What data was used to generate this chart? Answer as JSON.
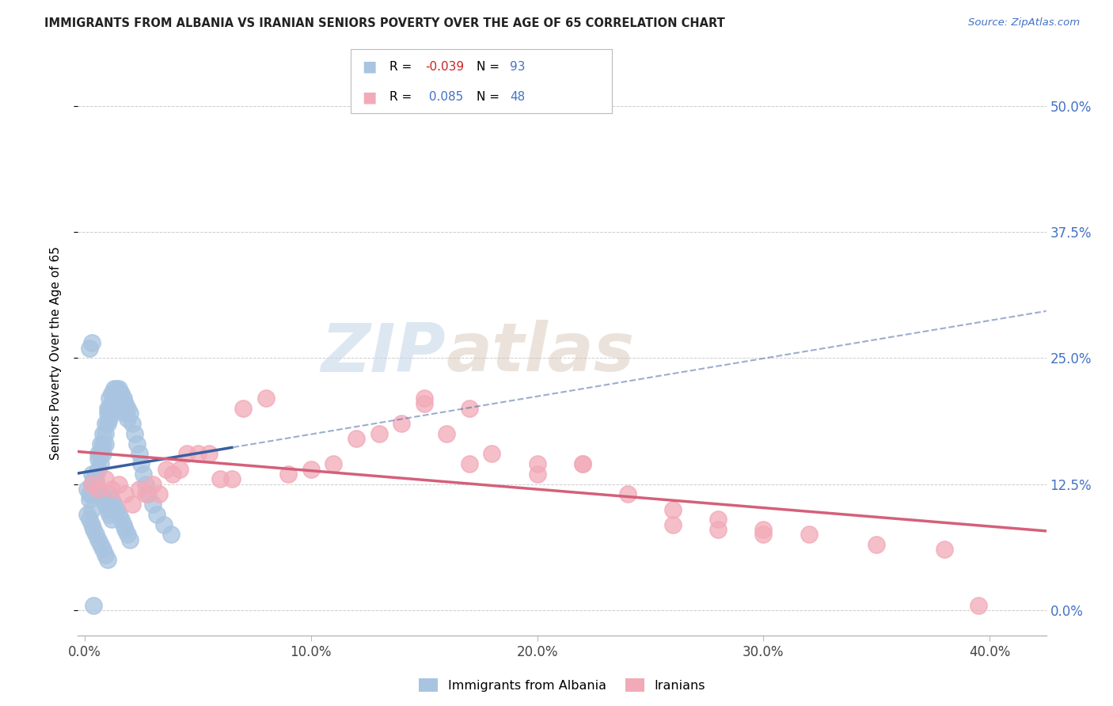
{
  "title": "IMMIGRANTS FROM ALBANIA VS IRANIAN SENIORS POVERTY OVER THE AGE OF 65 CORRELATION CHART",
  "source": "Source: ZipAtlas.com",
  "ylabel": "Seniors Poverty Over the Age of 65",
  "ytick_labels": [
    "0.0%",
    "12.5%",
    "25.0%",
    "37.5%",
    "50.0%"
  ],
  "ytick_vals": [
    0.0,
    0.125,
    0.25,
    0.375,
    0.5
  ],
  "xtick_labels": [
    "0.0%",
    "10.0%",
    "20.0%",
    "30.0%",
    "40.0%"
  ],
  "xtick_vals": [
    0.0,
    0.1,
    0.2,
    0.3,
    0.4
  ],
  "xlim": [
    -0.003,
    0.425
  ],
  "ylim": [
    -0.025,
    0.535
  ],
  "albania_color": "#a8c4e0",
  "iran_color": "#f2aab8",
  "trendline_blue": "#3a5fa0",
  "trendline_pink": "#d4607a",
  "albania_R": -0.039,
  "albania_N": 93,
  "iran_R": 0.085,
  "iran_N": 48,
  "watermark_zip": "ZIP",
  "watermark_atlas": "atlas",
  "legend_labels": [
    "Immigrants from Albania",
    "Iranians"
  ],
  "albania_x": [
    0.001,
    0.002,
    0.002,
    0.003,
    0.003,
    0.003,
    0.004,
    0.004,
    0.004,
    0.005,
    0.005,
    0.005,
    0.006,
    0.006,
    0.006,
    0.007,
    0.007,
    0.007,
    0.008,
    0.008,
    0.008,
    0.009,
    0.009,
    0.009,
    0.01,
    0.01,
    0.01,
    0.011,
    0.011,
    0.011,
    0.012,
    0.012,
    0.012,
    0.013,
    0.013,
    0.014,
    0.014,
    0.015,
    0.015,
    0.016,
    0.016,
    0.017,
    0.017,
    0.018,
    0.018,
    0.019,
    0.019,
    0.02,
    0.021,
    0.022,
    0.023,
    0.024,
    0.025,
    0.026,
    0.027,
    0.028,
    0.03,
    0.032,
    0.035,
    0.038,
    0.001,
    0.002,
    0.003,
    0.004,
    0.005,
    0.006,
    0.007,
    0.008,
    0.009,
    0.01,
    0.011,
    0.012,
    0.013,
    0.014,
    0.015,
    0.016,
    0.017,
    0.018,
    0.019,
    0.02,
    0.003,
    0.004,
    0.005,
    0.006,
    0.007,
    0.008,
    0.009,
    0.01,
    0.011,
    0.012,
    0.002,
    0.003,
    0.004
  ],
  "albania_y": [
    0.12,
    0.115,
    0.11,
    0.125,
    0.115,
    0.1,
    0.13,
    0.125,
    0.115,
    0.135,
    0.13,
    0.125,
    0.155,
    0.15,
    0.14,
    0.165,
    0.155,
    0.145,
    0.175,
    0.165,
    0.155,
    0.185,
    0.175,
    0.165,
    0.2,
    0.195,
    0.185,
    0.21,
    0.2,
    0.19,
    0.215,
    0.205,
    0.195,
    0.22,
    0.21,
    0.22,
    0.21,
    0.22,
    0.21,
    0.215,
    0.205,
    0.21,
    0.2,
    0.205,
    0.195,
    0.2,
    0.19,
    0.195,
    0.185,
    0.175,
    0.165,
    0.155,
    0.145,
    0.135,
    0.125,
    0.115,
    0.105,
    0.095,
    0.085,
    0.075,
    0.095,
    0.09,
    0.085,
    0.08,
    0.075,
    0.07,
    0.065,
    0.06,
    0.055,
    0.05,
    0.115,
    0.11,
    0.105,
    0.1,
    0.095,
    0.09,
    0.085,
    0.08,
    0.075,
    0.07,
    0.135,
    0.13,
    0.125,
    0.12,
    0.115,
    0.11,
    0.105,
    0.1,
    0.095,
    0.09,
    0.26,
    0.265,
    0.005
  ],
  "iran_x": [
    0.003,
    0.006,
    0.009,
    0.012,
    0.015,
    0.018,
    0.021,
    0.024,
    0.027,
    0.03,
    0.033,
    0.036,
    0.039,
    0.042,
    0.045,
    0.05,
    0.055,
    0.06,
    0.065,
    0.07,
    0.08,
    0.09,
    0.1,
    0.11,
    0.12,
    0.13,
    0.14,
    0.15,
    0.16,
    0.17,
    0.18,
    0.2,
    0.22,
    0.24,
    0.26,
    0.28,
    0.3,
    0.32,
    0.35,
    0.38,
    0.15,
    0.17,
    0.2,
    0.22,
    0.26,
    0.28,
    0.3,
    0.395
  ],
  "iran_y": [
    0.125,
    0.12,
    0.13,
    0.12,
    0.125,
    0.115,
    0.105,
    0.12,
    0.115,
    0.125,
    0.115,
    0.14,
    0.135,
    0.14,
    0.155,
    0.155,
    0.155,
    0.13,
    0.13,
    0.2,
    0.21,
    0.135,
    0.14,
    0.145,
    0.17,
    0.175,
    0.185,
    0.205,
    0.175,
    0.145,
    0.155,
    0.135,
    0.145,
    0.115,
    0.1,
    0.09,
    0.08,
    0.075,
    0.065,
    0.06,
    0.21,
    0.2,
    0.145,
    0.145,
    0.085,
    0.08,
    0.075,
    0.005
  ]
}
